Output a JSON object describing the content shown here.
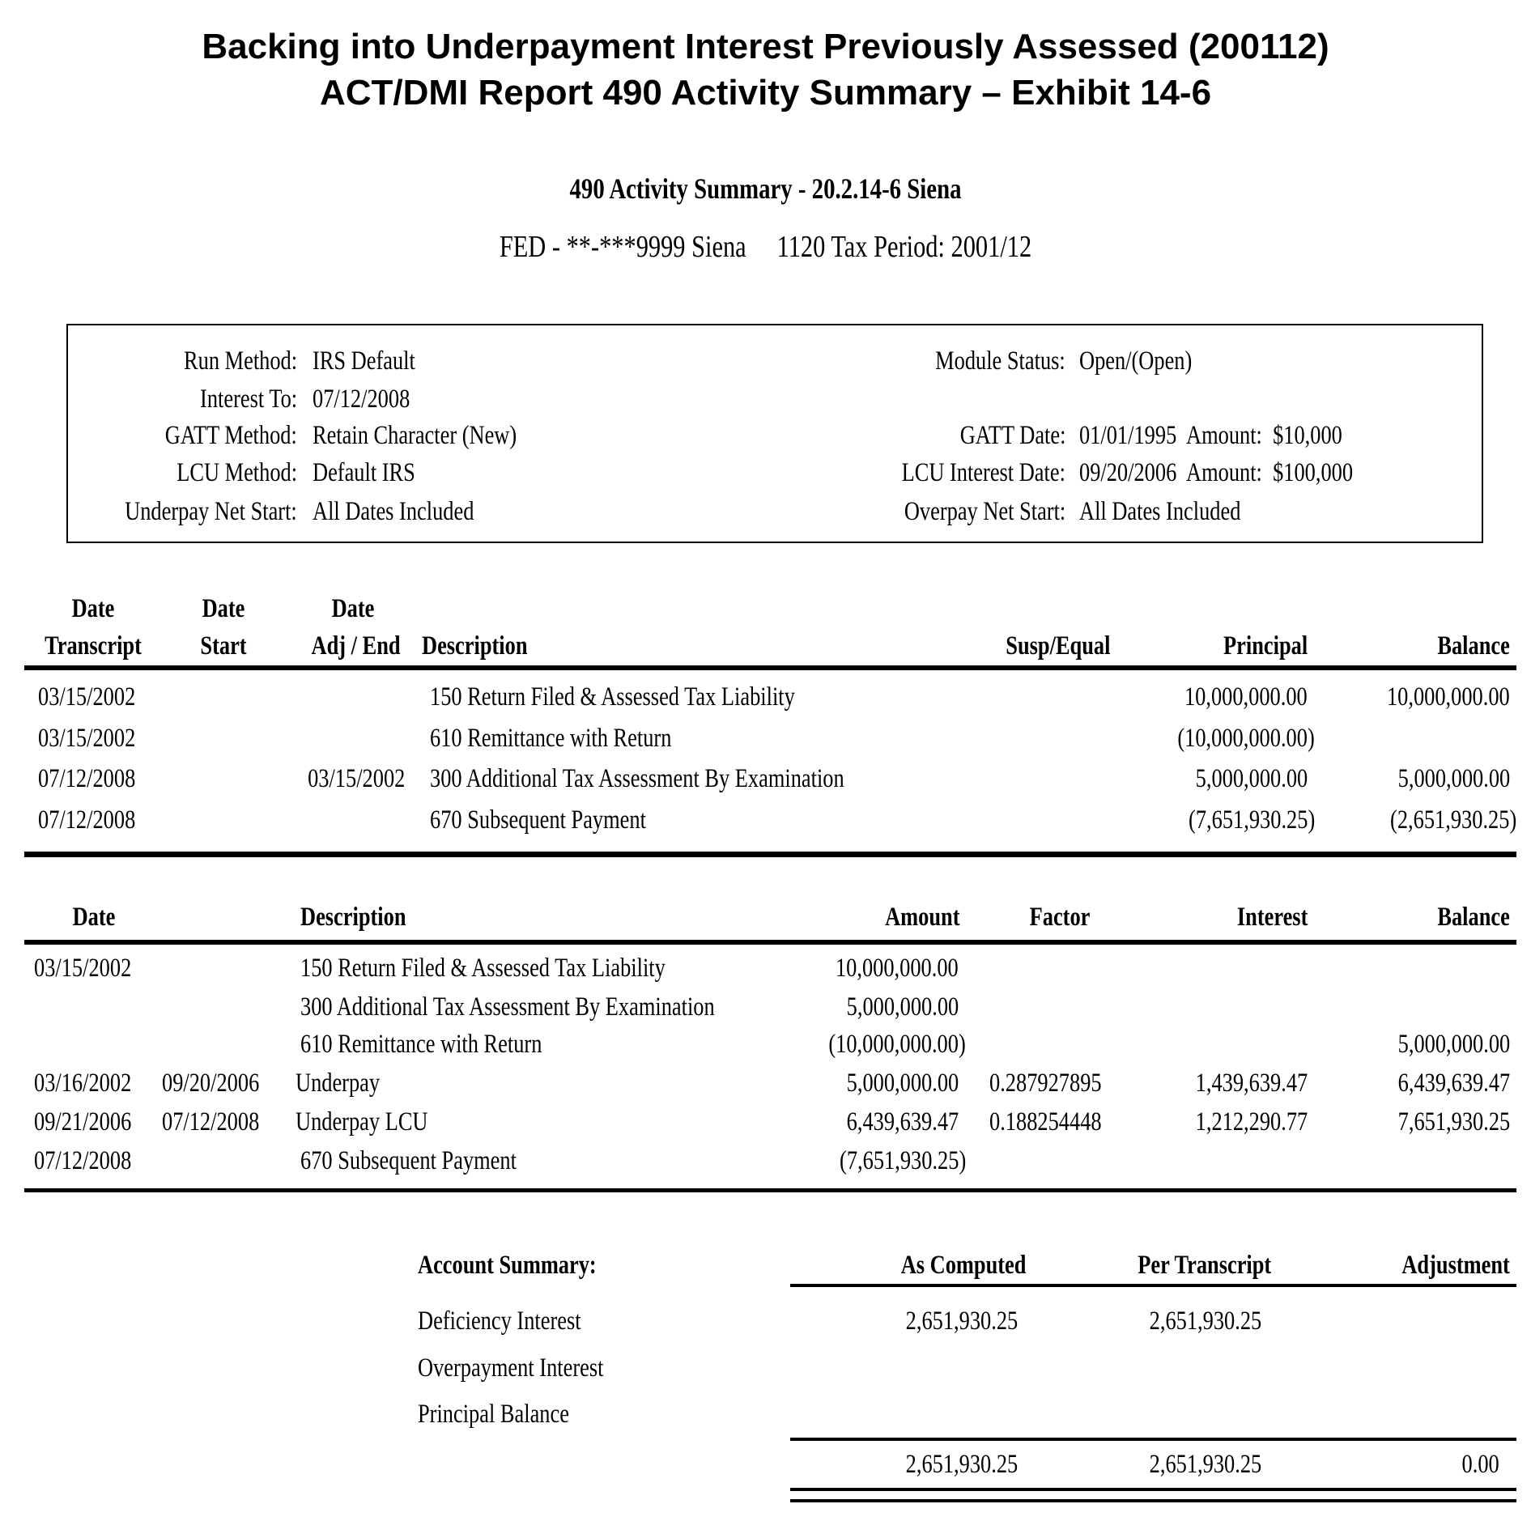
{
  "header": {
    "title_line1": "Backing into Underpayment Interest Previously Assessed (200112)",
    "title_line2": "ACT/DMI Report 490 Activity Summary – Exhibit 14-6",
    "report_title": "490 Activity Summary - 20.2.14-6 Siena",
    "report_subtitle": "FED - **-***9999 Siena     1120 Tax Period: 2001/12"
  },
  "info": {
    "left": [
      {
        "label": "Run Method:",
        "value": "IRS Default"
      },
      {
        "label": "Interest To:",
        "value": "07/12/2008"
      },
      {
        "label": "GATT Method:",
        "value": "Retain Character (New)"
      },
      {
        "label": "LCU Method:",
        "value": "Default IRS"
      },
      {
        "label": "Underpay Net Start:",
        "value": "All Dates Included"
      }
    ],
    "right": [
      {
        "label": "Module Status:",
        "value": "Open/(Open)"
      },
      {
        "label": "GATT Date:",
        "value": "01/01/1995  Amount:  $10,000"
      },
      {
        "label": "LCU Interest Date:",
        "value": "09/20/2006  Amount:  $100,000"
      },
      {
        "label": "Overpay Net Start:",
        "value": "All Dates Included"
      }
    ]
  },
  "transactions": {
    "headers": {
      "date": "Date",
      "transcript": "Transcript",
      "start": "Start",
      "adj_end": "Adj / End",
      "description": "Description",
      "susp_equal": "Susp/Equal",
      "principal": "Principal",
      "balance": "Balance"
    },
    "rows": [
      {
        "date_transcript": "03/15/2002",
        "date_start": "",
        "date_adj_end": "",
        "description": "150 Return Filed & Assessed Tax Liability",
        "susp_equal": "",
        "principal": "10,000,000.00",
        "balance": "10,000,000.00"
      },
      {
        "date_transcript": "03/15/2002",
        "date_start": "",
        "date_adj_end": "",
        "description": "610 Remittance with Return",
        "susp_equal": "",
        "principal": "(10,000,000.00)",
        "balance": ""
      },
      {
        "date_transcript": "07/12/2008",
        "date_start": "",
        "date_adj_end": "03/15/2002",
        "description": "300 Additional Tax Assessment By Examination",
        "susp_equal": "",
        "principal": "5,000,000.00",
        "balance": "5,000,000.00"
      },
      {
        "date_transcript": "07/12/2008",
        "date_start": "",
        "date_adj_end": "",
        "description": "670 Subsequent Payment",
        "susp_equal": "",
        "principal": "(7,651,930.25)",
        "balance": "(2,651,930.25)"
      }
    ]
  },
  "interest": {
    "headers": {
      "date": "Date",
      "description": "Description",
      "amount": "Amount",
      "factor": "Factor",
      "interest": "Interest",
      "balance": "Balance"
    },
    "rows": [
      {
        "date": "03/15/2002",
        "end": "",
        "description": "150 Return Filed & Assessed Tax Liability",
        "amount": "10,000,000.00",
        "factor": "",
        "interest": "",
        "balance": ""
      },
      {
        "date": "",
        "end": "",
        "description": "300 Additional Tax Assessment By Examination",
        "amount": "5,000,000.00",
        "factor": "",
        "interest": "",
        "balance": ""
      },
      {
        "date": "",
        "end": "",
        "description": "610 Remittance with Return",
        "amount": "(10,000,000.00)",
        "factor": "",
        "interest": "",
        "balance": "5,000,000.00"
      },
      {
        "date": "03/16/2002",
        "end": "09/20/2006",
        "description": "Underpay",
        "amount": "5,000,000.00",
        "factor": "0.287927895",
        "interest": "1,439,639.47",
        "balance": "6,439,639.47"
      },
      {
        "date": "09/21/2006",
        "end": "07/12/2008",
        "description": "Underpay LCU",
        "amount": "6,439,639.47",
        "factor": "0.188254448",
        "interest": "1,212,290.77",
        "balance": "7,651,930.25"
      },
      {
        "date": "07/12/2008",
        "end": "",
        "description": "670 Subsequent Payment",
        "amount": "(7,651,930.25)",
        "factor": "",
        "interest": "",
        "balance": ""
      }
    ]
  },
  "summary": {
    "headers": {
      "label": "Account Summary:",
      "as_computed": "As Computed",
      "per_transcript": "Per Transcript",
      "adjustment": "Adjustment"
    },
    "rows": [
      {
        "label": "Deficiency Interest",
        "as_computed": "2,651,930.25",
        "per_transcript": "2,651,930.25",
        "adjustment": ""
      },
      {
        "label": "Overpayment Interest",
        "as_computed": "",
        "per_transcript": "",
        "adjustment": ""
      },
      {
        "label": "Principal Balance",
        "as_computed": "",
        "per_transcript": "",
        "adjustment": ""
      }
    ],
    "total": {
      "as_computed": "2,651,930.25",
      "per_transcript": "2,651,930.25",
      "adjustment": "0.00"
    }
  }
}
